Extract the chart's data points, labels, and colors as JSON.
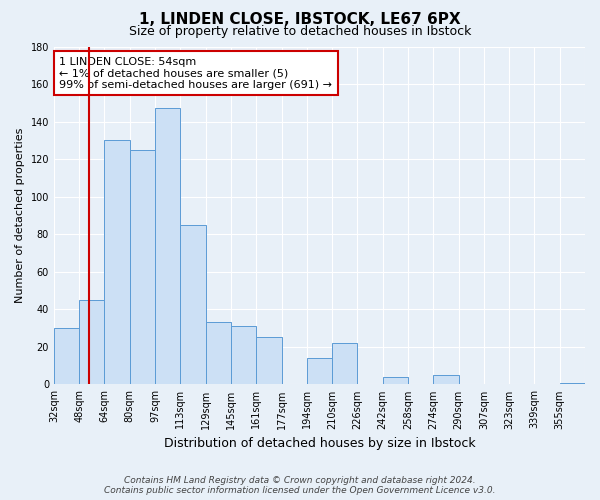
{
  "title": "1, LINDEN CLOSE, IBSTOCK, LE67 6PX",
  "subtitle": "Size of property relative to detached houses in Ibstock",
  "xlabel": "Distribution of detached houses by size in Ibstock",
  "ylabel": "Number of detached properties",
  "bin_labels": [
    "32sqm",
    "48sqm",
    "64sqm",
    "80sqm",
    "97sqm",
    "113sqm",
    "129sqm",
    "145sqm",
    "161sqm",
    "177sqm",
    "194sqm",
    "210sqm",
    "226sqm",
    "242sqm",
    "258sqm",
    "274sqm",
    "290sqm",
    "307sqm",
    "323sqm",
    "339sqm",
    "355sqm"
  ],
  "bar_heights": [
    30,
    45,
    130,
    125,
    147,
    85,
    33,
    31,
    25,
    0,
    14,
    22,
    0,
    4,
    0,
    5,
    0,
    0,
    0,
    0,
    1
  ],
  "bar_color": "#cce0f5",
  "bar_edge_color": "#5b9bd5",
  "ylim": [
    0,
    180
  ],
  "yticks": [
    0,
    20,
    40,
    60,
    80,
    100,
    120,
    140,
    160,
    180
  ],
  "vline_color": "#cc0000",
  "vline_bar_index": 1,
  "annotation_text": "1 LINDEN CLOSE: 54sqm\n← 1% of detached houses are smaller (5)\n99% of semi-detached houses are larger (691) →",
  "annotation_box_color": "#ffffff",
  "annotation_box_edge_color": "#cc0000",
  "footer_line1": "Contains HM Land Registry data © Crown copyright and database right 2024.",
  "footer_line2": "Contains public sector information licensed under the Open Government Licence v3.0.",
  "background_color": "#e8f0f8",
  "plot_bg_color": "#e8f0f8",
  "grid_color": "#ffffff",
  "title_fontsize": 11,
  "subtitle_fontsize": 9,
  "xlabel_fontsize": 9,
  "ylabel_fontsize": 8,
  "tick_fontsize": 7,
  "footer_fontsize": 6.5,
  "annotation_fontsize": 8
}
